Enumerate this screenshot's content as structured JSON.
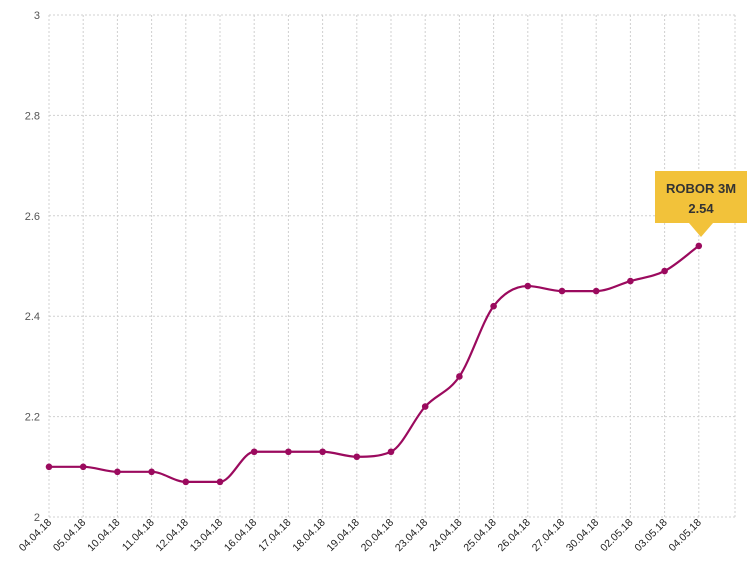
{
  "chart_data": {
    "type": "line",
    "title": "",
    "xlabel": "",
    "ylabel": "",
    "ylim": [
      2,
      3
    ],
    "y_ticks": [
      "3",
      "2.8",
      "2.6",
      "2.4",
      "2.2",
      "2"
    ],
    "grid": true,
    "categories": [
      "04.04.18",
      "05.04.18",
      "10.04.18",
      "11.04.18",
      "12.04.18",
      "13.04.18",
      "16.04.18",
      "17.04.18",
      "18.04.18",
      "19.04.18",
      "20.04.18",
      "23.04.18",
      "24.04.18",
      "25.04.18",
      "26.04.18",
      "27.04.18",
      "30.04.18",
      "02.05.18",
      "03.05.18",
      "04.05.18"
    ],
    "series": [
      {
        "name": "ROBOR 3M",
        "color": "#9b0a5e",
        "values": [
          2.1,
          2.1,
          2.09,
          2.09,
          2.07,
          2.07,
          2.13,
          2.13,
          2.13,
          2.12,
          2.13,
          2.22,
          2.28,
          2.42,
          2.46,
          2.45,
          2.45,
          2.47,
          2.49,
          2.54
        ]
      }
    ],
    "tooltip": {
      "series": "ROBOR 3M",
      "value": "2.54",
      "color": "#f2c23a"
    }
  }
}
